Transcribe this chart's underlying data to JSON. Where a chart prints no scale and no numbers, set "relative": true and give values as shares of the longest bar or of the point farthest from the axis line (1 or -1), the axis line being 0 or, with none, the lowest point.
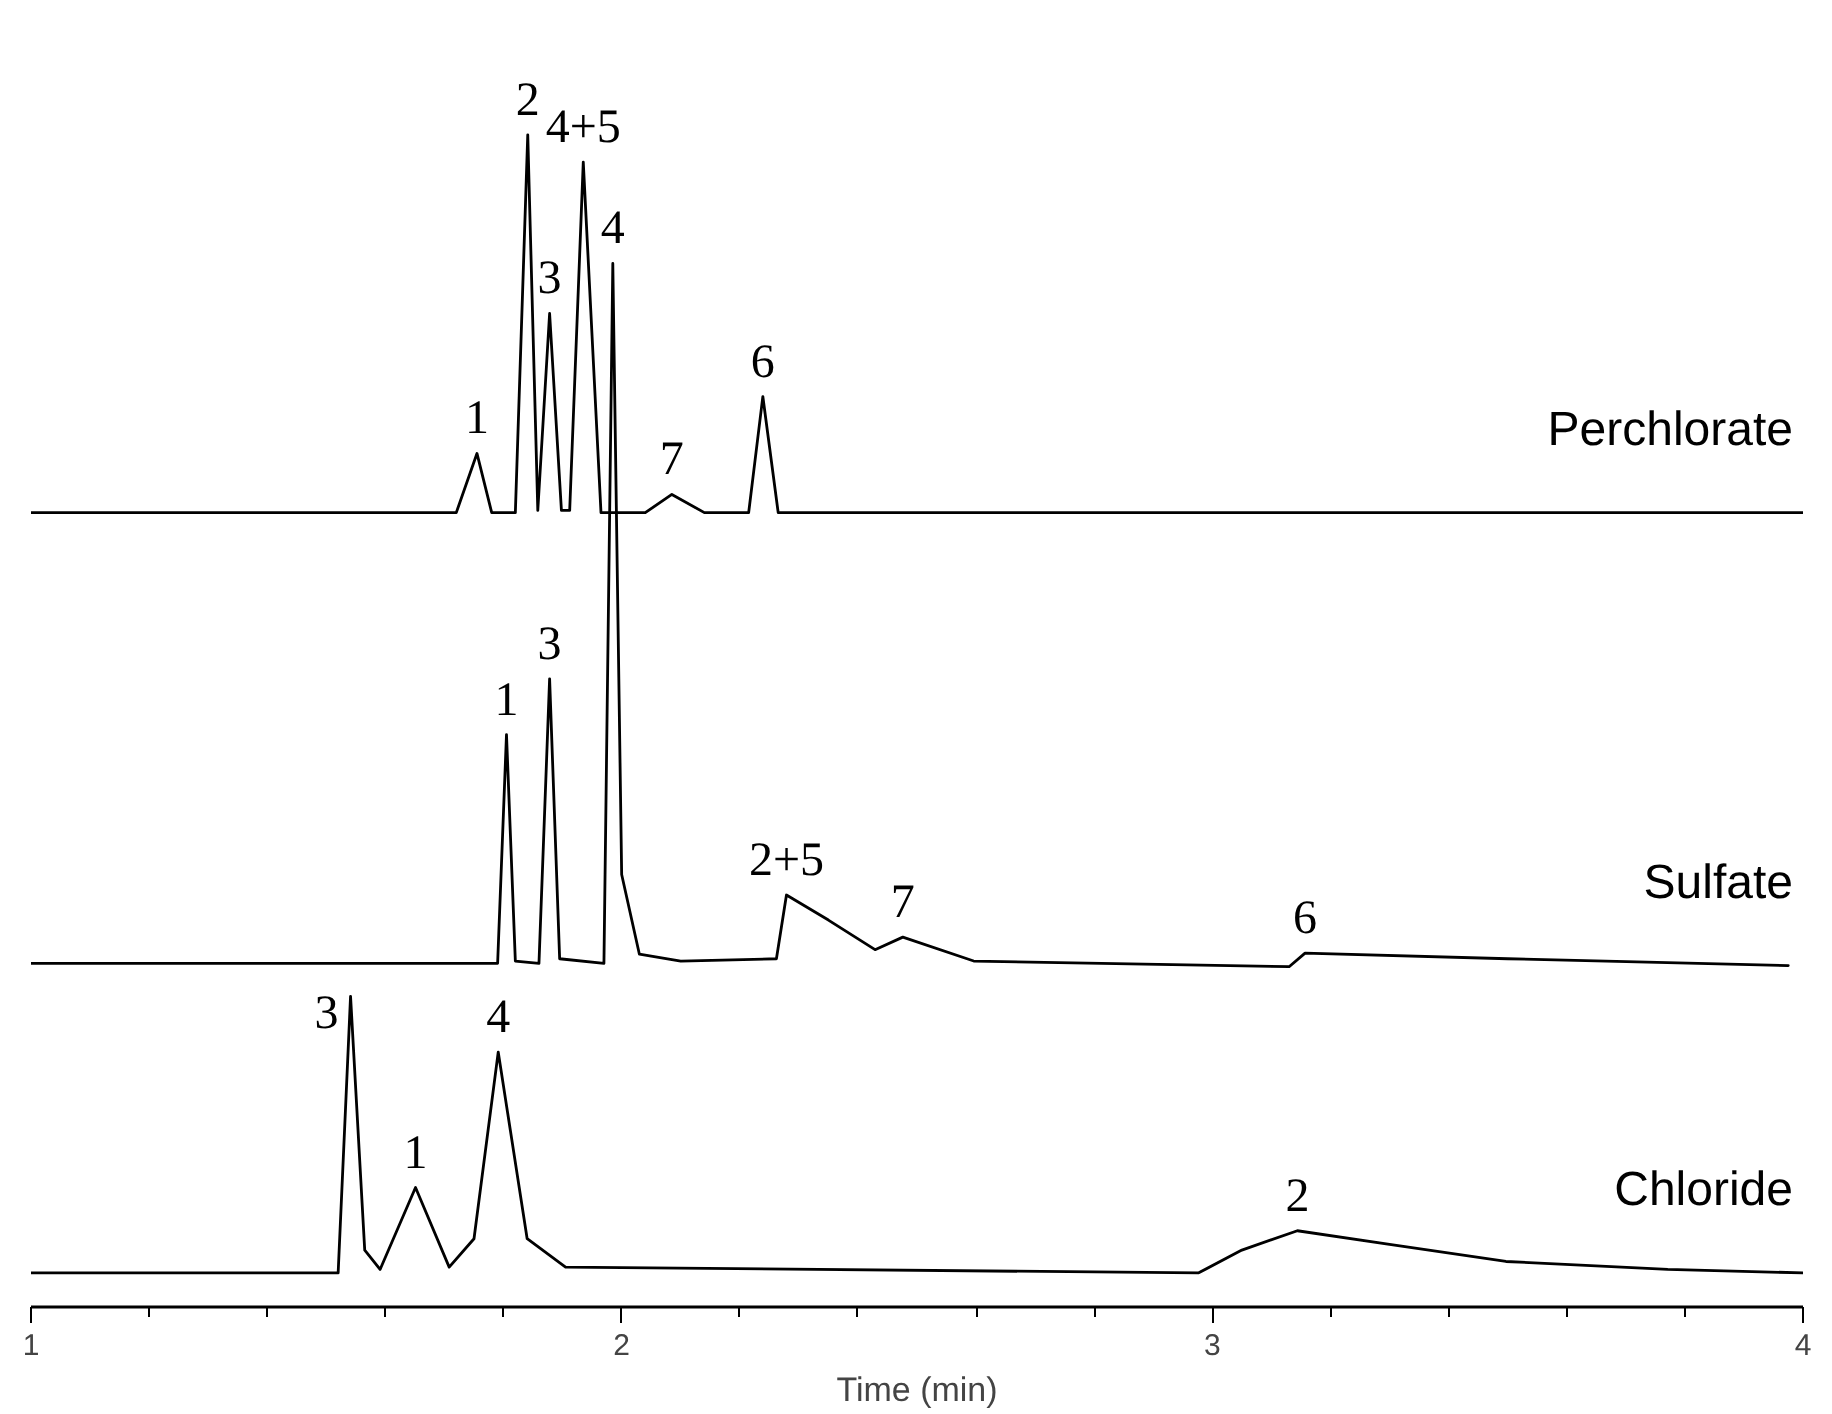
{
  "chart_data": {
    "type": "line",
    "relative": true,
    "xlabel": "Time (min)",
    "xlim": [
      1,
      4
    ],
    "xticks": [
      1,
      2,
      3,
      4
    ],
    "grid": false,
    "legend": false,
    "tick_labels": "x",
    "series": [
      {
        "name": "Perchlorate",
        "color": "#000000",
        "x": [
          1.0,
          1.72,
          1.755,
          1.78,
          1.82,
          1.841,
          1.858,
          1.878,
          1.898,
          1.912,
          1.935,
          1.965,
          2.04,
          2.085,
          2.14,
          2.215,
          2.239,
          2.265,
          4.0
        ],
        "values": [
          0.668,
          0.668,
          0.72,
          0.668,
          0.668,
          1.0,
          0.67,
          0.843,
          0.67,
          0.67,
          0.976,
          0.668,
          0.668,
          0.684,
          0.668,
          0.668,
          0.77,
          0.668,
          0.668
        ]
      },
      {
        "name": "Sulfate",
        "color": "#000000",
        "x": [
          1.0,
          1.79,
          1.805,
          1.82,
          1.86,
          1.878,
          1.895,
          1.97,
          1.985,
          2.0,
          2.03,
          2.1,
          2.262,
          2.279,
          2.35,
          2.429,
          2.476,
          2.596,
          3.13,
          3.157,
          3.5,
          3.975
        ],
        "values": [
          0.272,
          0.272,
          0.473,
          0.274,
          0.272,
          0.522,
          0.276,
          0.272,
          0.887,
          0.35,
          0.28,
          0.274,
          0.276,
          0.332,
          0.31,
          0.284,
          0.295,
          0.274,
          0.269,
          0.281,
          0.276,
          0.27
        ]
      },
      {
        "name": "Chloride",
        "color": "#000000",
        "x": [
          1.0,
          1.52,
          1.541,
          1.565,
          1.591,
          1.651,
          1.708,
          1.75,
          1.791,
          1.84,
          1.905,
          2.977,
          3.05,
          3.144,
          3.3,
          3.497,
          3.771,
          4.0
        ],
        "values": [
          0,
          0,
          0.243,
          0.02,
          0.003,
          0.075,
          0.005,
          0.03,
          0.194,
          0.03,
          0.005,
          0,
          0.02,
          0.037,
          0.025,
          0.01,
          0.003,
          0
        ]
      }
    ],
    "annotations": [
      {
        "text": "1",
        "x": 1.755,
        "y": 0.72
      },
      {
        "text": "2",
        "x": 1.841,
        "y": 1.0
      },
      {
        "text": "3",
        "x": 1.878,
        "y": 0.843
      },
      {
        "text": "4+5",
        "x": 1.935,
        "y": 0.976
      },
      {
        "text": "7",
        "x": 2.085,
        "y": 0.684
      },
      {
        "text": "6",
        "x": 2.239,
        "y": 0.77
      },
      {
        "text": "1",
        "x": 1.805,
        "y": 0.473
      },
      {
        "text": "3",
        "x": 1.878,
        "y": 0.522
      },
      {
        "text": "4",
        "x": 1.985,
        "y": 0.887
      },
      {
        "text": "2+5",
        "x": 2.279,
        "y": 0.332
      },
      {
        "text": "7",
        "x": 2.476,
        "y": 0.295
      },
      {
        "text": "6",
        "x": 3.157,
        "y": 0.281
      },
      {
        "text": "3",
        "x": 1.541,
        "y": 0.243
      },
      {
        "text": "1",
        "x": 1.651,
        "y": 0.075
      },
      {
        "text": "4",
        "x": 1.791,
        "y": 0.194
      },
      {
        "text": "2",
        "x": 3.144,
        "y": 0.037
      }
    ]
  }
}
